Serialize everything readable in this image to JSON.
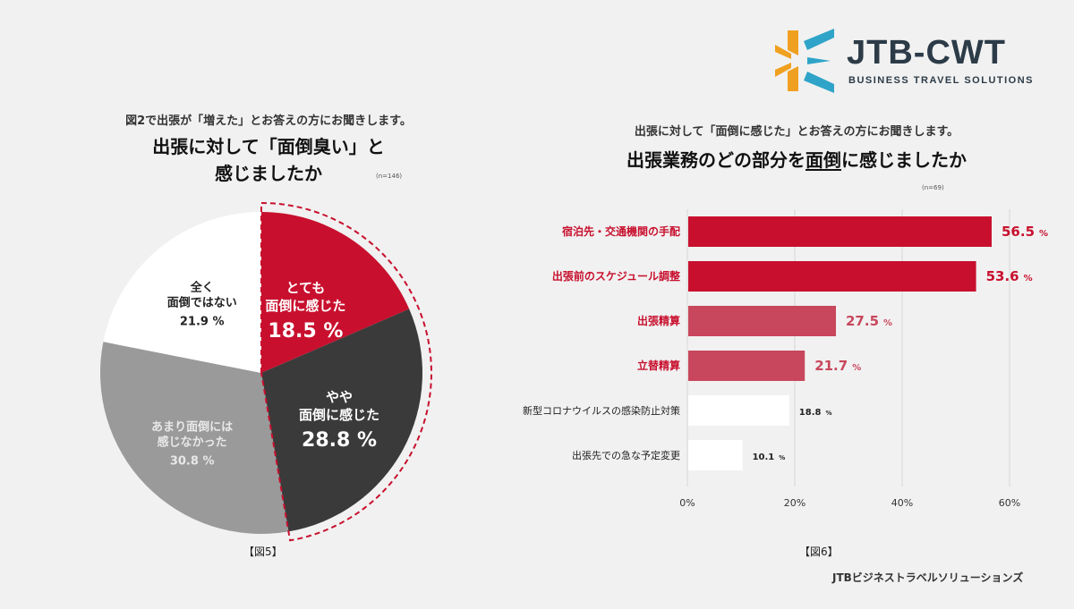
{
  "logo": {
    "brand": "JTB-CWT",
    "tagline": "BUSINESS TRAVEL SOLUTIONS",
    "colors": {
      "orange": "#f0a020",
      "teal": "#2fa4c8",
      "text": "#2c3b47"
    }
  },
  "left": {
    "subtitle": "図2で出張が「増えた」とお答えの方にお聞きします。",
    "title_line1": "出張に対して「面倒臭い」と",
    "title_line2": "感じましたか",
    "n": "(n=146)",
    "figure_label": "【図5】"
  },
  "right": {
    "subtitle": "出張に対して「面倒に感じた」とお答えの方にお聞きします。",
    "title_pre": "出張業務のどの部分を",
    "title_under": "面倒",
    "title_post": "に感じましたか",
    "n": "(n=69)",
    "figure_label": "【図6】"
  },
  "source": "JTBビジネストラベルソリューションズ",
  "chart_data": [
    {
      "type": "pie",
      "slices": [
        {
          "label_lines": [
            "とても",
            "面倒に感じた"
          ],
          "value": 18.5,
          "display": "18.5 %",
          "color": "#c8102e",
          "text_color": "#ffffff"
        },
        {
          "label_lines": [
            "やや",
            "面倒に感じた"
          ],
          "value": 28.8,
          "display": "28.8 %",
          "color": "#3a3a3a",
          "text_color": "#ffffff"
        },
        {
          "label_lines": [
            "あまり面倒には",
            "感じなかった"
          ],
          "value": 30.8,
          "display": "30.8 %",
          "color": "#9a9a9a",
          "text_color": "#e8e8e8"
        },
        {
          "label_lines": [
            "全く",
            "面倒ではない"
          ],
          "value": 21.9,
          "display": "21.9 %",
          "color": "#ffffff",
          "text_color": "#222222"
        }
      ],
      "highlight": "dashed outline around とても面倒に感じた + やや面倒に感じた",
      "highlight_color": "#c8102e"
    },
    {
      "type": "bar",
      "orientation": "horizontal",
      "categories": [
        "宿泊先・交通機関の手配",
        "出張前のスケジュール調整",
        "出張精算",
        "立替精算",
        "新型コロナウイルスの感染防止対策",
        "出張先での急な予定変更"
      ],
      "values": [
        56.5,
        53.6,
        27.5,
        21.7,
        18.8,
        10.1
      ],
      "value_labels": [
        "56.5",
        "53.6",
        "27.5",
        "21.7",
        "18.8",
        "10.1"
      ],
      "unit": "%",
      "bar_colors": [
        "#c8102e",
        "#c8102e",
        "#c8475c",
        "#c8475c",
        "#ffffff",
        "#ffffff"
      ],
      "label_colors": [
        "#c8102e",
        "#c8102e",
        "#c8102e",
        "#c8102e",
        "#222222",
        "#222222"
      ],
      "value_label_colors": [
        "#c8102e",
        "#c8102e",
        "#c8475c",
        "#c8475c",
        "#222222",
        "#222222"
      ],
      "xlim": [
        0,
        60
      ],
      "xticks": [
        0,
        20,
        40,
        60
      ],
      "xtick_labels": [
        "0%",
        "20%",
        "40%",
        "60%"
      ],
      "grid": true
    }
  ]
}
